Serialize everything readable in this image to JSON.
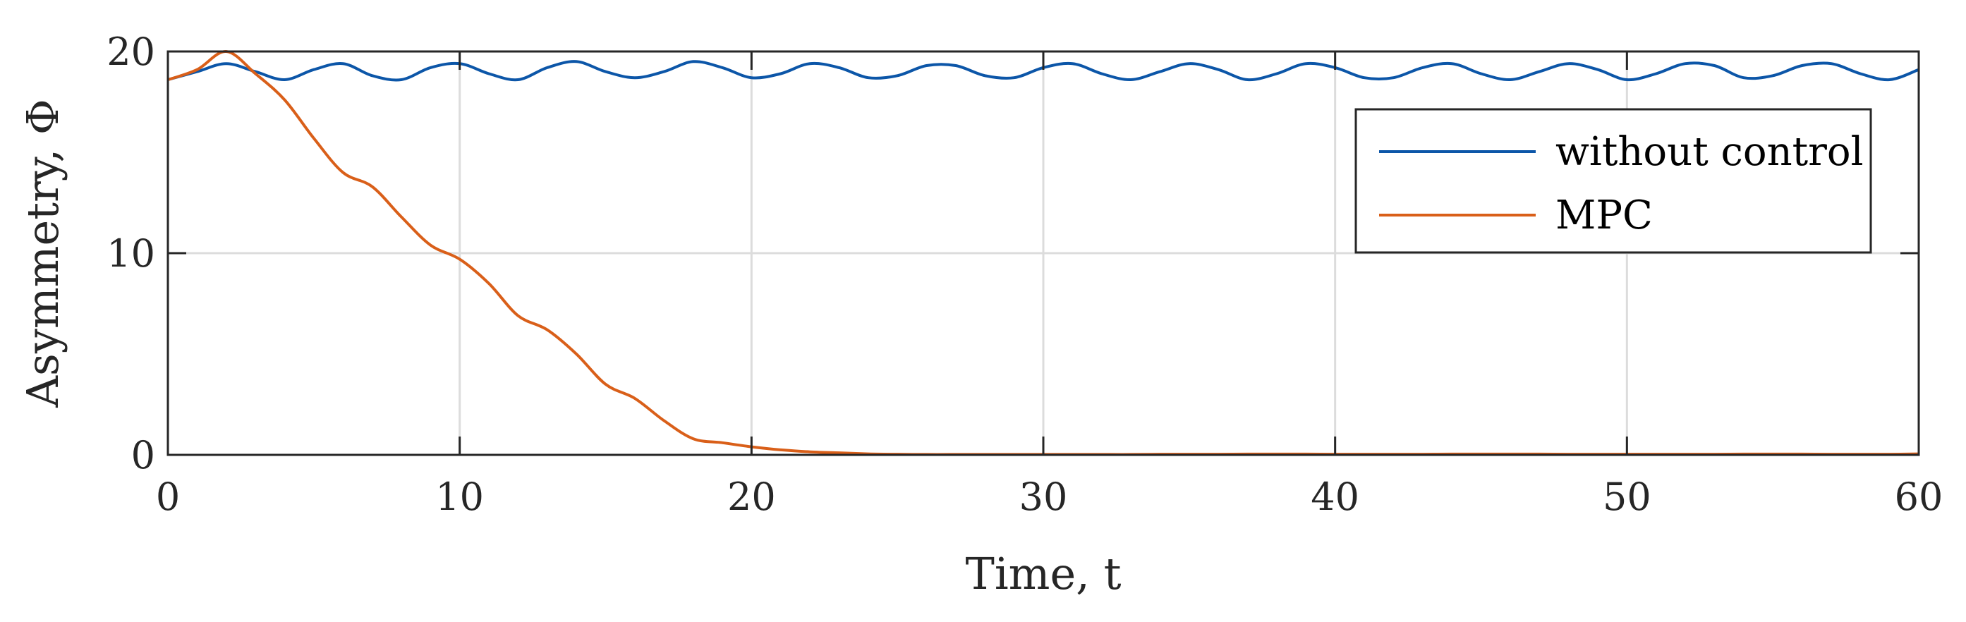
{
  "chart_data": {
    "type": "line",
    "xlabel": "Time, t",
    "ylabel": "Asymmetry, Φ",
    "xlim": [
      0,
      60
    ],
    "ylim": [
      0,
      20
    ],
    "xticks": [
      0,
      10,
      20,
      30,
      40,
      50,
      60
    ],
    "xtick_labels": [
      "0",
      "10",
      "20",
      "30",
      "40",
      "50",
      "60"
    ],
    "yticks": [
      0,
      10,
      20
    ],
    "ytick_labels": [
      "0",
      "10",
      "20"
    ],
    "grid": true,
    "legend_position": "top-right",
    "series": [
      {
        "name": "without control",
        "color": "#0c56a8",
        "x": [
          0,
          1,
          2,
          3,
          4,
          5,
          6,
          7,
          8,
          9,
          10,
          11,
          12,
          13,
          14,
          15,
          16,
          17,
          18,
          19,
          20,
          21,
          22,
          23,
          24,
          25,
          26,
          27,
          28,
          29,
          30,
          31,
          32,
          33,
          34,
          35,
          36,
          37,
          38,
          39,
          40,
          41,
          42,
          43,
          44,
          45,
          46,
          47,
          48,
          49,
          50,
          51,
          52,
          53,
          54,
          55,
          56,
          57,
          58,
          59,
          60
        ],
        "y": [
          18.6,
          19.0,
          19.4,
          19.0,
          18.6,
          19.1,
          19.4,
          18.8,
          18.6,
          19.2,
          19.4,
          18.9,
          18.6,
          19.2,
          19.5,
          19.0,
          18.7,
          19.0,
          19.5,
          19.2,
          18.7,
          18.9,
          19.4,
          19.2,
          18.7,
          18.8,
          19.3,
          19.3,
          18.8,
          18.7,
          19.2,
          19.4,
          18.9,
          18.6,
          19.0,
          19.4,
          19.1,
          18.6,
          18.9,
          19.4,
          19.2,
          18.7,
          18.7,
          19.2,
          19.4,
          18.9,
          18.6,
          19.0,
          19.4,
          19.1,
          18.6,
          18.9,
          19.4,
          19.3,
          18.7,
          18.8,
          19.3,
          19.4,
          18.9,
          18.6,
          19.1
        ]
      },
      {
        "name": "MPC",
        "color": "#d95f19",
        "x": [
          0,
          1,
          2,
          3,
          4,
          5,
          6,
          7,
          8,
          9,
          10,
          11,
          12,
          13,
          14,
          15,
          16,
          17,
          18,
          19,
          20,
          21,
          22,
          23,
          24,
          25,
          26,
          27,
          28,
          29,
          30,
          31,
          32,
          33,
          34,
          35,
          36,
          37,
          38,
          39,
          40,
          41,
          42,
          43,
          44,
          45,
          46,
          47,
          48,
          49,
          50,
          51,
          52,
          53,
          54,
          55,
          56,
          57,
          58,
          59,
          60
        ],
        "y": [
          18.6,
          19.1,
          20.0,
          18.9,
          17.6,
          15.7,
          14.0,
          13.3,
          11.8,
          10.4,
          9.7,
          8.5,
          6.9,
          6.2,
          5.0,
          3.5,
          2.8,
          1.7,
          0.8,
          0.6,
          0.4,
          0.25,
          0.15,
          0.1,
          0.05,
          0.03,
          0.02,
          0.02,
          0.02,
          0.02,
          0.02,
          0.02,
          0.02,
          0.02,
          0.03,
          0.03,
          0.03,
          0.04,
          0.04,
          0.04,
          0.03,
          0.03,
          0.03,
          0.03,
          0.04,
          0.04,
          0.04,
          0.04,
          0.03,
          0.03,
          0.03,
          0.03,
          0.03,
          0.03,
          0.04,
          0.04,
          0.04,
          0.03,
          0.03,
          0.03,
          0.05
        ]
      }
    ]
  }
}
